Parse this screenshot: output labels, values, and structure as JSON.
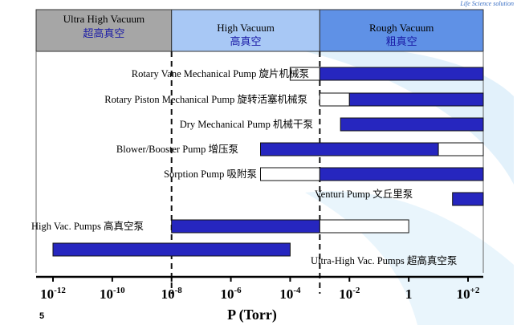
{
  "brand_text": "Life Science solution",
  "page_number": "5",
  "colors": {
    "bar_fill": "#2626bf",
    "bar_open": "#ffffff",
    "band_uhv": "#a6a6a6",
    "band_hv": "#a8c8f5",
    "band_rv": "#5f91e6"
  },
  "chart_data": {
    "type": "bar",
    "orientation": "horizontal",
    "log_x": true,
    "xlabel": "P (Torr)",
    "xlim": [
      1e-13,
      1000.0
    ],
    "xticks": [
      {
        "value": 1e-12,
        "base": "10",
        "exp": "-12"
      },
      {
        "value": 1e-10,
        "base": "10",
        "exp": "-10"
      },
      {
        "value": 1e-08,
        "base": "10",
        "exp": "-8"
      },
      {
        "value": 1e-06,
        "base": "10",
        "exp": "-6"
      },
      {
        "value": 0.0001,
        "base": "10",
        "exp": "-4"
      },
      {
        "value": 0.01,
        "base": "10",
        "exp": "-2"
      },
      {
        "value": 1,
        "base": "1",
        "exp": ""
      },
      {
        "value": 100,
        "base": "10",
        "exp": "+2"
      }
    ],
    "regions": [
      {
        "name": "Ultra High Vacuum",
        "name_cn": "超高真空",
        "from": 1e-13,
        "to": 1e-08
      },
      {
        "name": "High Vacuum",
        "name_cn": "高真空",
        "from": 1e-08,
        "to": 0.001
      },
      {
        "name": "Rough Vacuum",
        "name_cn": "粗真空",
        "from": 0.001,
        "to": 1000.0
      }
    ],
    "boundaries": [
      1e-08,
      0.001
    ],
    "pumps": [
      {
        "label": "Rotary Vane Mechanical Pump 旋片机械泵",
        "segments": [
          {
            "from": 0.0001,
            "to": 0.001,
            "style": "open"
          },
          {
            "from": 0.001,
            "to": 1000.0,
            "style": "filled"
          }
        ]
      },
      {
        "label": "Rotary Piston Mechanical Pump 旋转活塞机械泵",
        "segments": [
          {
            "from": 0.001,
            "to": 0.01,
            "style": "open"
          },
          {
            "from": 0.01,
            "to": 1000.0,
            "style": "filled"
          }
        ]
      },
      {
        "label": "Dry Mechanical Pump 机械干泵",
        "segments": [
          {
            "from": 0.005,
            "to": 1000.0,
            "style": "filled"
          }
        ]
      },
      {
        "label": "Blower/Booster Pump 增压泵",
        "segments": [
          {
            "from": 1e-05,
            "to": 10,
            "style": "filled"
          },
          {
            "from": 10,
            "to": 1000.0,
            "style": "open"
          }
        ]
      },
      {
        "label": "Sorption Pump 吸附泵",
        "segments": [
          {
            "from": 1e-05,
            "to": 0.001,
            "style": "open"
          },
          {
            "from": 0.001,
            "to": 1000.0,
            "style": "filled"
          }
        ]
      },
      {
        "label": "Venturi Pump 文丘里泵",
        "segments": [
          {
            "from": 30,
            "to": 1000.0,
            "style": "filled"
          }
        ]
      },
      {
        "label": "High Vac. Pumps 高真空泵",
        "segments": [
          {
            "from": 1e-08,
            "to": 0.001,
            "style": "filled"
          },
          {
            "from": 0.001,
            "to": 1,
            "style": "open"
          }
        ]
      },
      {
        "label": "Ultra-High Vac. Pumps 超高真空泵",
        "segments": [
          {
            "from": 1e-12,
            "to": 0.0001,
            "style": "filled"
          }
        ]
      }
    ]
  }
}
